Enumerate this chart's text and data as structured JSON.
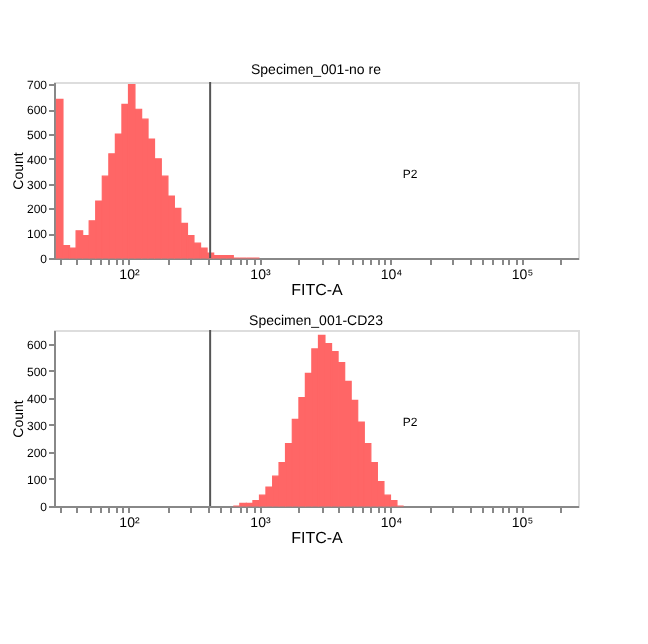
{
  "chart_data": [
    {
      "type": "histogram",
      "title": "Specimen_001-no re",
      "xlabel": "FITC-A",
      "ylabel": "Count",
      "log": "x",
      "color": "#ff6666",
      "grid": false,
      "bins": [
        28.2,
        31.6,
        35.5,
        39.8,
        44.7,
        50.1,
        56.2,
        63.1,
        70.8,
        79.4,
        89.1,
        100,
        112,
        126,
        141,
        158,
        178,
        200,
        224,
        251,
        282,
        316,
        355,
        398,
        447,
        501,
        562,
        631,
        708,
        794,
        891,
        1000
      ],
      "values": [
        640,
        50,
        40,
        110,
        90,
        150,
        230,
        330,
        420,
        500,
        620,
        700,
        600,
        560,
        480,
        400,
        330,
        250,
        200,
        140,
        90,
        60,
        40,
        20,
        10,
        10,
        10,
        0,
        0,
        0,
        0
      ],
      "xlim": [
        27,
        270000
      ],
      "ylim": [
        0,
        710
      ],
      "xticks": [
        {
          "value": 30,
          "label": null
        },
        {
          "value": 40,
          "label": null
        },
        {
          "value": 50,
          "label": null
        },
        {
          "value": 60,
          "label": null
        },
        {
          "value": 70,
          "label": null
        },
        {
          "value": 80,
          "label": null
        },
        {
          "value": 90,
          "label": null
        },
        {
          "value": 100,
          "label": "10²"
        },
        {
          "value": 200,
          "label": null
        },
        {
          "value": 300,
          "label": null
        },
        {
          "value": 400,
          "label": null
        },
        {
          "value": 500,
          "label": null
        },
        {
          "value": 600,
          "label": null
        },
        {
          "value": 700,
          "label": null
        },
        {
          "value": 800,
          "label": null
        },
        {
          "value": 900,
          "label": null
        },
        {
          "value": 1000,
          "label": "10³"
        },
        {
          "value": 2000,
          "label": null
        },
        {
          "value": 3000,
          "label": null
        },
        {
          "value": 4000,
          "label": null
        },
        {
          "value": 5000,
          "label": null
        },
        {
          "value": 6000,
          "label": null
        },
        {
          "value": 7000,
          "label": null
        },
        {
          "value": 8000,
          "label": null
        },
        {
          "value": 9000,
          "label": null
        },
        {
          "value": 10000,
          "label": "10⁴"
        },
        {
          "value": 20000,
          "label": null
        },
        {
          "value": 30000,
          "label": null
        },
        {
          "value": 40000,
          "label": null
        },
        {
          "value": 50000,
          "label": null
        },
        {
          "value": 60000,
          "label": null
        },
        {
          "value": 70000,
          "label": null
        },
        {
          "value": 80000,
          "label": null
        },
        {
          "value": 90000,
          "label": null
        },
        {
          "value": 100000,
          "label": "10⁵"
        },
        {
          "value": 200000,
          "label": null
        }
      ],
      "yticks": [
        0,
        100,
        200,
        300,
        400,
        500,
        600,
        700
      ],
      "ref_lines": [
        {
          "axis": "x",
          "value": 420,
          "color": "#555555"
        }
      ],
      "annotations": [
        "P2"
      ]
    },
    {
      "type": "histogram",
      "title": "Specimen_001-CD23",
      "xlabel": "FITC-A",
      "ylabel": "Count",
      "log": "x",
      "color": "#ff6666",
      "grid": false,
      "bins": [
        631,
        708,
        794,
        891,
        1000,
        1120,
        1260,
        1410,
        1580,
        1780,
        2000,
        2240,
        2510,
        2820,
        3160,
        3550,
        3980,
        4470,
        5010,
        5620,
        6310,
        7080,
        7940,
        8910,
        10000,
        11200,
        12600
      ],
      "values": [
        0,
        10,
        10,
        20,
        40,
        70,
        110,
        160,
        230,
        320,
        400,
        490,
        580,
        630,
        600,
        570,
        530,
        460,
        390,
        310,
        230,
        160,
        90,
        40,
        20,
        0
      ],
      "xlim": [
        27,
        270000
      ],
      "ylim": [
        0,
        650
      ],
      "xticks": [
        {
          "value": 30,
          "label": null
        },
        {
          "value": 40,
          "label": null
        },
        {
          "value": 50,
          "label": null
        },
        {
          "value": 60,
          "label": null
        },
        {
          "value": 70,
          "label": null
        },
        {
          "value": 80,
          "label": null
        },
        {
          "value": 90,
          "label": null
        },
        {
          "value": 100,
          "label": "10²"
        },
        {
          "value": 200,
          "label": null
        },
        {
          "value": 300,
          "label": null
        },
        {
          "value": 400,
          "label": null
        },
        {
          "value": 500,
          "label": null
        },
        {
          "value": 600,
          "label": null
        },
        {
          "value": 700,
          "label": null
        },
        {
          "value": 800,
          "label": null
        },
        {
          "value": 900,
          "label": null
        },
        {
          "value": 1000,
          "label": "10³"
        },
        {
          "value": 2000,
          "label": null
        },
        {
          "value": 3000,
          "label": null
        },
        {
          "value": 4000,
          "label": null
        },
        {
          "value": 5000,
          "label": null
        },
        {
          "value": 6000,
          "label": null
        },
        {
          "value": 7000,
          "label": null
        },
        {
          "value": 8000,
          "label": null
        },
        {
          "value": 9000,
          "label": null
        },
        {
          "value": 10000,
          "label": "10⁴"
        },
        {
          "value": 20000,
          "label": null
        },
        {
          "value": 30000,
          "label": null
        },
        {
          "value": 40000,
          "label": null
        },
        {
          "value": 50000,
          "label": null
        },
        {
          "value": 60000,
          "label": null
        },
        {
          "value": 70000,
          "label": null
        },
        {
          "value": 80000,
          "label": null
        },
        {
          "value": 90000,
          "label": null
        },
        {
          "value": 100000,
          "label": "10⁵"
        },
        {
          "value": 200000,
          "label": null
        }
      ],
      "yticks": [
        0,
        100,
        200,
        300,
        400,
        500,
        600
      ],
      "ref_lines": [
        {
          "axis": "x",
          "value": 420,
          "color": "#555555"
        }
      ],
      "annotations": [
        "P2"
      ]
    }
  ]
}
